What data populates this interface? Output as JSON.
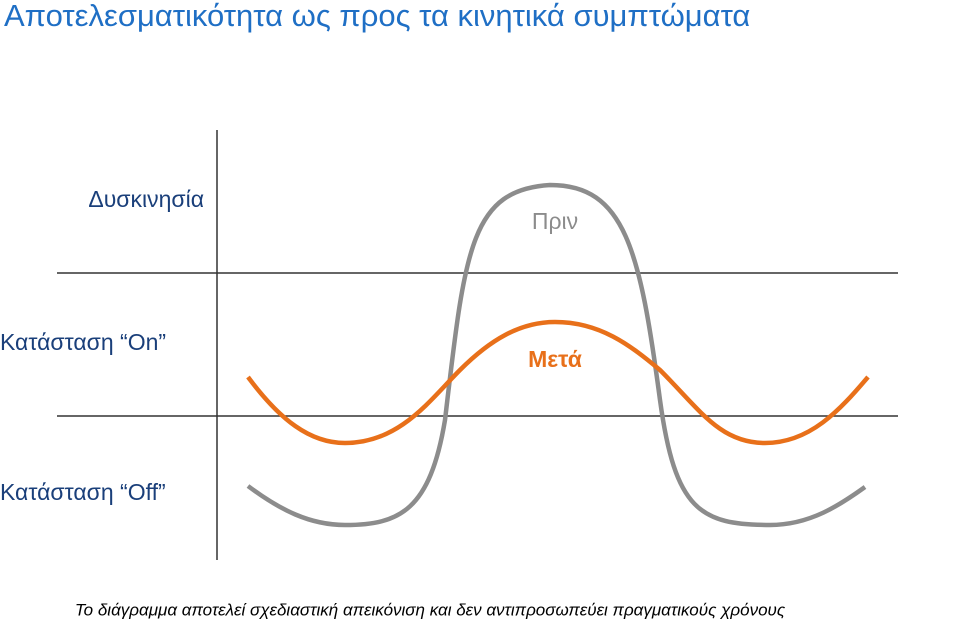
{
  "title": "Αποτελεσματικότητα ως προς τα κινητικά συμπτώματα",
  "rows": [
    "Δυσκινησία",
    "Κατάσταση “On”",
    "Κατάσταση “Off”"
  ],
  "curves": [
    "Πριν",
    "Μετά"
  ],
  "footnote": "Το διάγραμμα αποτελεί σχεδιαστική απεικόνιση και δεν αντιπροσωπεύει πραγματικούς χρόνους"
}
